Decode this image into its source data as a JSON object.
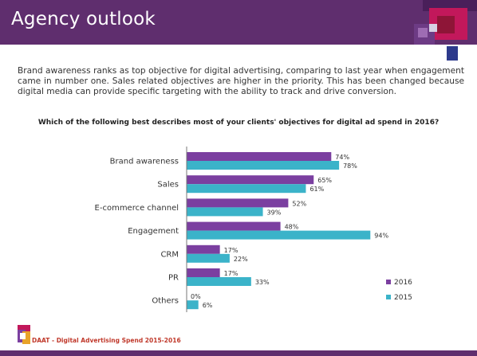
{
  "header": {
    "title": "Agency outlook"
  },
  "intro": "Brand awareness ranks as top objective for digital advertising, comparing to last year when engagement came in number one. Sales related objectives are higher in the priority. This has been changed because digital media can provide specific targeting with the ability to track and drive conversion.",
  "question": "Which of the following best describes most of your clients' objectives for digital ad spend in 2016?",
  "footer": {
    "source": "DAAT - Digital Advertising Spend 2015-2016"
  },
  "colors": {
    "header": "#5f2e6e",
    "series_2016": "#7b3fa0",
    "series_2015": "#3bb3c9"
  },
  "chart_data": {
    "type": "bar",
    "orientation": "horizontal",
    "categories": [
      "Brand awareness",
      "Sales",
      "E-commerce channel",
      "Engagement",
      "CRM",
      "PR",
      "Others"
    ],
    "series": [
      {
        "name": "2016",
        "values": [
          74,
          65,
          52,
          48,
          17,
          17,
          0
        ],
        "labels": [
          "74%",
          "65%",
          "52%",
          "48%",
          "17%",
          "17%",
          "0%"
        ]
      },
      {
        "name": "2015",
        "values": [
          78,
          61,
          39,
          94,
          22,
          33,
          6
        ],
        "labels": [
          "78%",
          "61%",
          "39%",
          "94%",
          "22%",
          "33%",
          "6%"
        ]
      }
    ],
    "xlim": [
      0,
      100
    ],
    "legend": "bottom-right",
    "grid": false
  }
}
